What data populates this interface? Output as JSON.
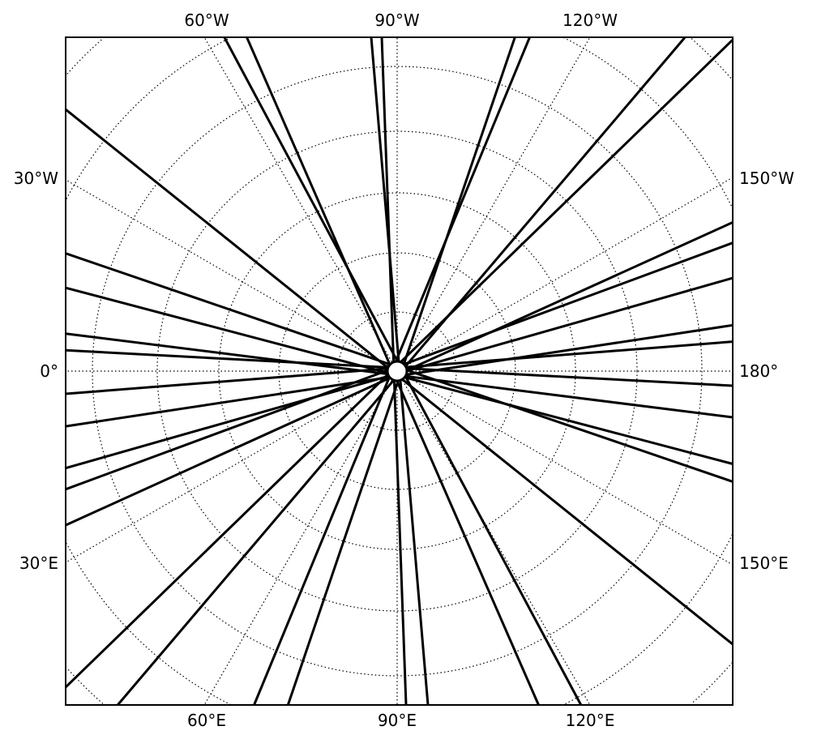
{
  "map": {
    "projection": "polar stereographic (north pole centered)",
    "graticule_style": "dotted",
    "line_color": "#000000",
    "background_color": "#ffffff",
    "labels": {
      "top": [
        "60°W",
        "90°W",
        "120°W"
      ],
      "left": [
        "30°W",
        "0°",
        "30°E"
      ],
      "right": [
        "150°W",
        "180°",
        "150°E"
      ],
      "bottom": [
        "60°E",
        "90°E",
        "120°E"
      ]
    }
  }
}
